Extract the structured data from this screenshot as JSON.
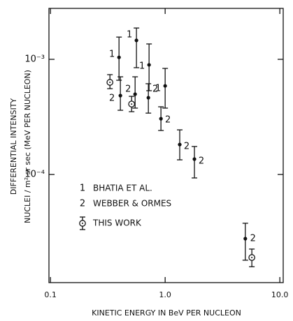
{
  "chart_data": {
    "type": "scatter",
    "xlabel": "KINETIC ENERGY IN BeV PER NUCLEON",
    "ylabel": [
      "DIFFERENTIAL  INTENSITY",
      "NUCLEI / m² sr sec  (MeV PER NUCLEON)"
    ],
    "xscale": "log",
    "yscale": "log",
    "xlim": [
      0.097,
      10.7
    ],
    "ylim": [
      1.15e-05,
      0.00277
    ],
    "xticks": [
      0.1,
      {
        "value": 1,
        "label": "1.0"
      },
      {
        "value": 10,
        "label": "10.0"
      }
    ],
    "yticks": [
      {
        "value": 0.001,
        "label": "10⁻³"
      },
      {
        "value": 0.0001,
        "label": "10⁻⁴"
      }
    ],
    "series": [
      {
        "name": "BHATIA ET AL.",
        "marker_label": "1",
        "marker": "filled",
        "color": "#111111",
        "x": [
          0.396,
          0.562,
          0.724,
          1.0
        ],
        "values": [
          0.00104,
          0.00146,
          0.000895,
          0.000588
        ],
        "lower": [
          0.000658,
          0.000846,
          0.000534,
          0.000377
        ],
        "upper": [
          0.00156,
          0.00187,
          0.00136,
          0.000834
        ]
      },
      {
        "name": "WEBBER & ORMES",
        "marker_label": "2",
        "marker": "filled",
        "color": "#111111",
        "x": [
          0.407,
          0.547,
          0.714,
          0.919,
          1.34,
          1.8,
          5.0
        ],
        "values": [
          0.000484,
          0.000498,
          0.000464,
          0.000305,
          0.000182,
          0.000136,
          2.77e-05
        ],
        "lower": [
          0.000361,
          0.000377,
          0.000341,
          0.000241,
          0.000134,
          9.33e-05,
          1.8e-05
        ],
        "upper": [
          0.000705,
          0.000705,
          0.000614,
          0.000387,
          0.000244,
          0.000175,
          3.77e-05
        ]
      },
      {
        "name": "THIS WORK",
        "marker": "open",
        "color": "#111111",
        "x": [
          0.33,
          0.51,
          5.7
        ],
        "values": [
          0.000631,
          0.000409,
          1.9e-05
        ],
        "lower": [
          0.000556,
          0.000351,
          1.58e-05
        ],
        "upper": [
          0.000736,
          0.000477,
          2.25e-05
        ]
      }
    ]
  }
}
